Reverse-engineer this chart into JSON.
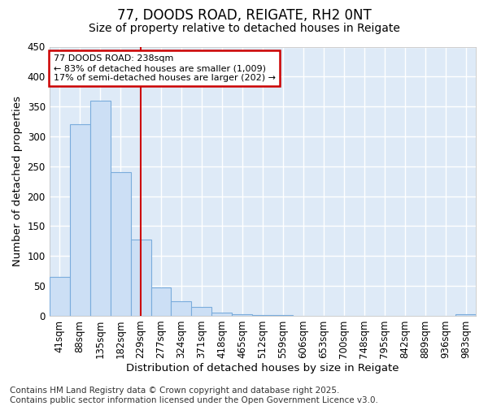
{
  "title1": "77, DOODS ROAD, REIGATE, RH2 0NT",
  "title2": "Size of property relative to detached houses in Reigate",
  "xlabel": "Distribution of detached houses by size in Reigate",
  "ylabel": "Number of detached properties",
  "bar_color": "#ccdff5",
  "bar_edge_color": "#7aacdc",
  "categories": [
    "41sqm",
    "88sqm",
    "135sqm",
    "182sqm",
    "229sqm",
    "277sqm",
    "324sqm",
    "371sqm",
    "418sqm",
    "465sqm",
    "512sqm",
    "559sqm",
    "606sqm",
    "653sqm",
    "700sqm",
    "748sqm",
    "795sqm",
    "842sqm",
    "889sqm",
    "936sqm",
    "983sqm"
  ],
  "values": [
    65,
    320,
    360,
    240,
    128,
    48,
    25,
    15,
    5,
    3,
    1,
    1,
    0,
    0,
    0,
    0,
    0,
    0,
    0,
    0,
    2
  ],
  "vline_x": 4.0,
  "vline_color": "#cc0000",
  "annotation_line1": "77 DOODS ROAD: 238sqm",
  "annotation_line2": "← 83% of detached houses are smaller (1,009)",
  "annotation_line3": "17% of semi-detached houses are larger (202) →",
  "annotation_box_color": "#cc0000",
  "ylim": [
    0,
    450
  ],
  "yticks": [
    0,
    50,
    100,
    150,
    200,
    250,
    300,
    350,
    400,
    450
  ],
  "plot_bg_color": "#deeaf7",
  "fig_bg_color": "#ffffff",
  "grid_color": "#ffffff",
  "footnote": "Contains HM Land Registry data © Crown copyright and database right 2025.\nContains public sector information licensed under the Open Government Licence v3.0.",
  "title_fontsize": 12,
  "subtitle_fontsize": 10,
  "axis_label_fontsize": 9.5,
  "tick_fontsize": 8.5,
  "annotation_fontsize": 8,
  "footnote_fontsize": 7.5
}
